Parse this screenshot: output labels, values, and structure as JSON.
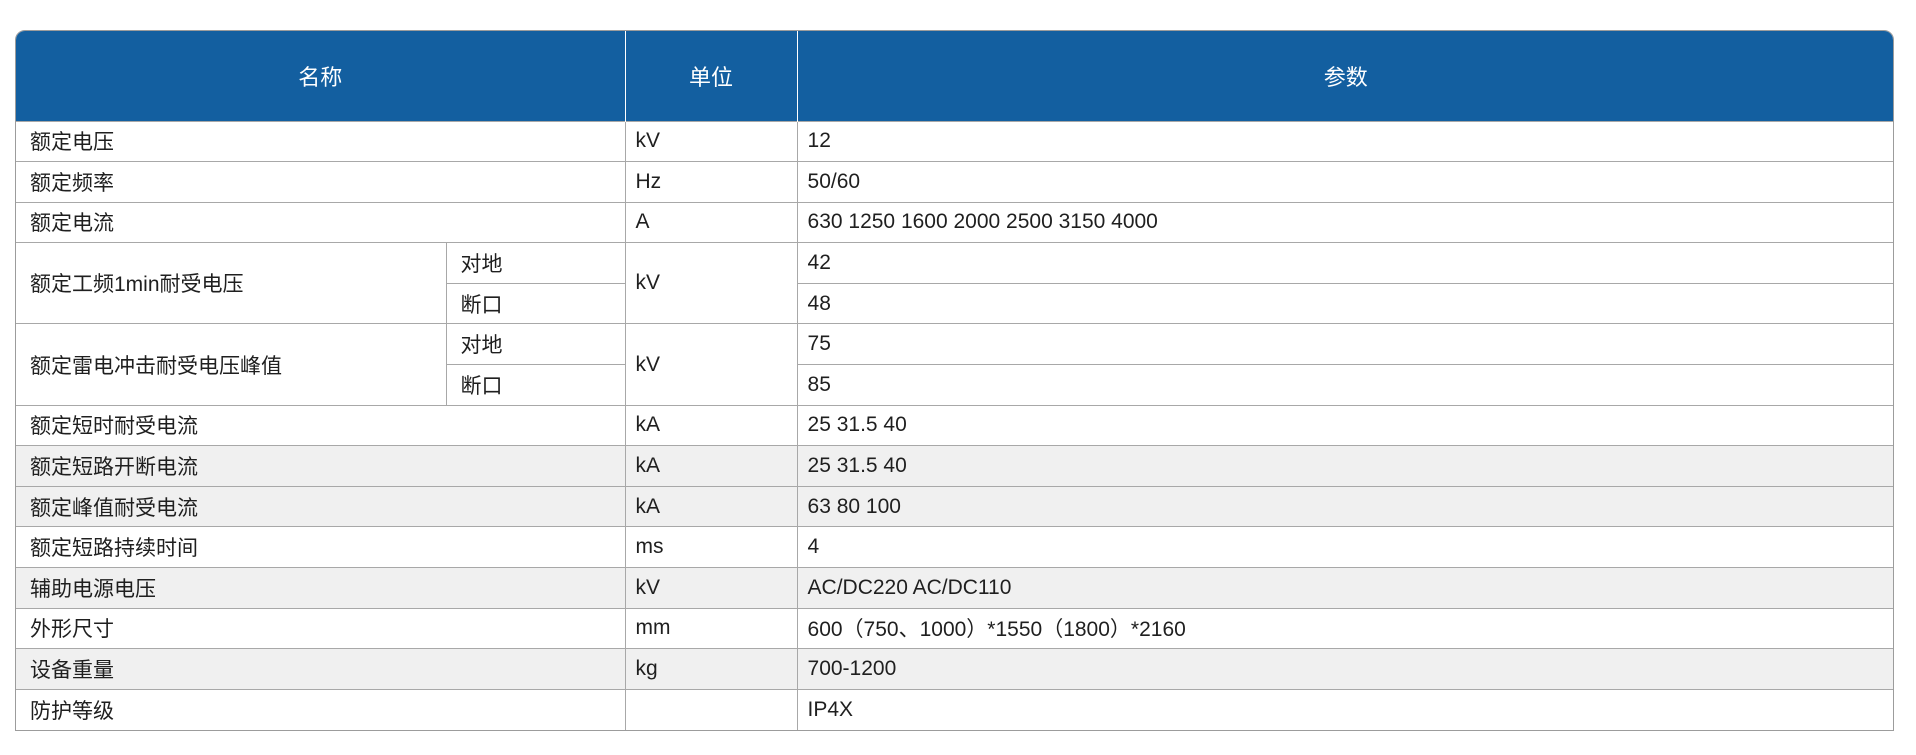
{
  "table": {
    "colors": {
      "header_bg": "#135FA0",
      "header_text": "#ffffff",
      "shaded_row_bg": "#f0f0f0",
      "border": "#a8a8a8",
      "body_text": "#1f1f1f"
    },
    "headers": {
      "name": "名称",
      "unit": "单位",
      "param": "参数"
    },
    "rows": [
      {
        "name": "额定电压",
        "unit": "kV",
        "param": "12",
        "shaded": false
      },
      {
        "name": "额定频率",
        "unit": "Hz",
        "param": "50/60",
        "shaded": false
      },
      {
        "name": "额定电流",
        "unit": "A",
        "param": "630 1250 1600 2000 2500 3150 4000",
        "shaded": false
      },
      {
        "name": "额定工频1min耐受电压",
        "unit": "kV",
        "sub": [
          {
            "label": "对地",
            "param": "42",
            "shaded": false
          },
          {
            "label": "断口",
            "param": "48",
            "shaded": false
          }
        ]
      },
      {
        "name": "额定雷电冲击耐受电压峰值",
        "unit": "kV",
        "sub": [
          {
            "label": "对地",
            "param": "75",
            "shaded": false
          },
          {
            "label": "断口",
            "param": "85",
            "shaded": false
          }
        ]
      },
      {
        "name": "额定短时耐受电流",
        "unit": "kA",
        "param": "25 31.5 40",
        "shaded": false
      },
      {
        "name": "额定短路开断电流",
        "unit": "kA",
        "param": "25 31.5 40",
        "shaded": true
      },
      {
        "name": "额定峰值耐受电流",
        "unit": "kA",
        "param": "63 80 100",
        "shaded": true
      },
      {
        "name": "额定短路持续时间",
        "unit": "ms",
        "param": "4",
        "shaded": false
      },
      {
        "name": "辅助电源电压",
        "unit": "kV",
        "param": "AC/DC220 AC/DC110",
        "shaded": true
      },
      {
        "name": "外形尺寸",
        "unit": "mm",
        "param": "600（750、1000）*1550（1800）*2160",
        "shaded": false
      },
      {
        "name": "设备重量",
        "unit": "kg",
        "param": "700-1200",
        "shaded": true
      },
      {
        "name": "防护等级",
        "unit": "",
        "param": "IP4X",
        "shaded": false
      }
    ]
  }
}
